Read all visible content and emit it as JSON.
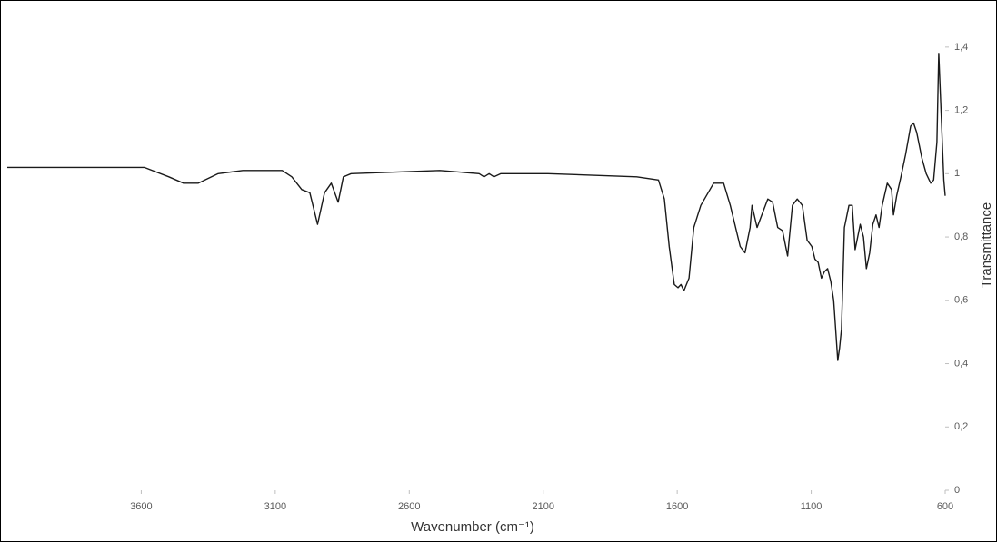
{
  "chart_data": {
    "type": "line",
    "x_label": "Wavenumber (cm⁻¹)",
    "y_label": "Transmittance",
    "x": [
      4100,
      3589,
      3497,
      3442,
      3387,
      3313,
      3221,
      3074,
      3038,
      3001,
      2971,
      2942,
      2916,
      2891,
      2865,
      2846,
      2817,
      2486,
      2339,
      2321,
      2302,
      2284,
      2258,
      2082,
      1751,
      1670,
      1648,
      1630,
      1611,
      1597,
      1586,
      1575,
      1556,
      1538,
      1512,
      1464,
      1427,
      1402,
      1365,
      1347,
      1328,
      1321,
      1302,
      1280,
      1262,
      1244,
      1225,
      1207,
      1188,
      1170,
      1152,
      1133,
      1115,
      1098,
      1086,
      1074,
      1062,
      1051,
      1039,
      1027,
      1016,
      1001,
      994,
      987,
      976,
      959,
      947,
      936,
      929,
      917,
      905,
      894,
      882,
      870,
      858,
      847,
      835,
      816,
      800,
      793,
      781,
      765,
      748,
      729,
      718,
      706,
      687,
      671,
      654,
      643,
      631,
      624,
      617,
      605,
      600
    ],
    "series": [
      {
        "color": "#1a1a1a",
        "values": [
          1.02,
          1.02,
          0.99,
          0.97,
          0.97,
          1.0,
          1.01,
          1.01,
          0.99,
          0.95,
          0.94,
          0.84,
          0.94,
          0.97,
          0.91,
          0.99,
          1.0,
          1.01,
          1.0,
          0.99,
          1.0,
          0.99,
          1.0,
          1.0,
          0.99,
          0.98,
          0.92,
          0.77,
          0.65,
          0.64,
          0.65,
          0.63,
          0.67,
          0.83,
          0.9,
          0.97,
          0.97,
          0.9,
          0.77,
          0.75,
          0.83,
          0.9,
          0.83,
          0.88,
          0.92,
          0.91,
          0.83,
          0.82,
          0.74,
          0.9,
          0.92,
          0.9,
          0.79,
          0.77,
          0.73,
          0.72,
          0.67,
          0.69,
          0.7,
          0.66,
          0.6,
          0.41,
          0.45,
          0.51,
          0.83,
          0.9,
          0.9,
          0.76,
          0.79,
          0.84,
          0.8,
          0.7,
          0.75,
          0.84,
          0.87,
          0.83,
          0.9,
          0.97,
          0.95,
          0.87,
          0.93,
          0.99,
          1.06,
          1.15,
          1.16,
          1.13,
          1.05,
          1.0,
          0.97,
          0.98,
          1.1,
          1.38,
          1.23,
          0.98,
          0.93
        ]
      }
    ],
    "xlim": [
      4100,
      600
    ],
    "xticks": [
      3600,
      3100,
      2600,
      2100,
      1600,
      1100,
      600
    ],
    "ylim": [
      0,
      1.5
    ],
    "yticks": [
      0,
      {
        "value": 0.2,
        "label": "0,2"
      },
      {
        "value": 0.4,
        "label": "0,4"
      },
      {
        "value": 0.6,
        "label": "0,6"
      },
      {
        "value": 0.8,
        "label": "0,8"
      },
      1,
      {
        "value": 1.2,
        "label": "1,2"
      },
      {
        "value": 1.4,
        "label": "1,4"
      }
    ]
  }
}
